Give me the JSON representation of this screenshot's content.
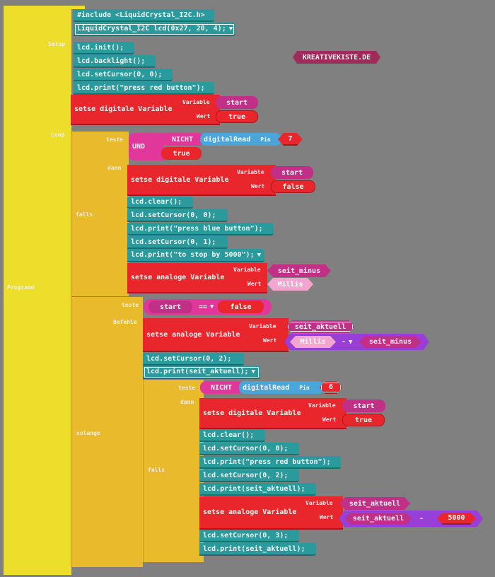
{
  "program": {
    "label": "Programm",
    "setup_label": "Setup",
    "loop_label": "Loop"
  },
  "badge": "KREATIVEKISTE.DE",
  "setup": {
    "include": "#include <LiquidCrystal_I2C.h>",
    "decl": "LiquidCrystal_I2C lcd(0x27, 20, 4);",
    "init": "lcd.init();",
    "backlight": "lcd.backlight();",
    "cursor": "lcd.setCursor(0, 0);",
    "print": "lcd.print(\"press red button\");",
    "set": {
      "label": "setse digitale Variable",
      "var_label": "Variable",
      "val_label": "Wert",
      "var": "start",
      "val": "true"
    }
  },
  "loop": {
    "if1": {
      "label": "falls",
      "test_label": "teste",
      "then_label": "dann",
      "and": "UND",
      "not": "NICHT",
      "dread": "digitalRead",
      "pin_label": "Pin",
      "pin": "7",
      "true": "true",
      "set": {
        "label": "setse digitale Variable",
        "var_label": "Variable",
        "val_label": "Wert",
        "var": "start",
        "val": "false"
      },
      "clear": "lcd.clear();",
      "c00": "lcd.setCursor(0, 0);",
      "p1": "lcd.print(\"press blue button\");",
      "c01": "lcd.setCursor(0, 1);",
      "p2": "lcd.print(\"to stop by 5000\");",
      "set2": {
        "label": "setse analoge Variable",
        "var_label": "Variable",
        "val_label": "Wert",
        "var": "seit_minus",
        "val": "Millis"
      }
    },
    "while": {
      "label": "solange",
      "test_label": "teste",
      "cmd_label": "Befehle",
      "lhs": "start",
      "op": "==",
      "rhs": "false",
      "set": {
        "label": "setse analoge Variable",
        "var_label": "Variable",
        "val_label": "Wert",
        "var": "seit_aktuell",
        "a": "Millis",
        "op": "-",
        "b": "seit_minus"
      },
      "c02": "lcd.setCursor(0, 2);",
      "p": "lcd.print(seit_aktuell);",
      "if2": {
        "label": "falls",
        "test_label": "teste",
        "then_label": "dann",
        "not": "NICHT",
        "dread": "digitalRead",
        "pin_label": "Pin",
        "pin": "6",
        "set": {
          "label": "setse digitale Variable",
          "var_label": "Variable",
          "val_label": "Wert",
          "var": "start",
          "val": "true"
        },
        "clear": "lcd.clear();",
        "c00": "lcd.setCursor(0, 0);",
        "p1": "lcd.print(\"press red button\");",
        "c02": "lcd.setCursor(0, 2);",
        "p2": "lcd.print(seit_aktuell);",
        "set2": {
          "label": "setse analoge Variable",
          "var_label": "Variable",
          "val_label": "Wert",
          "var": "seit_aktuell",
          "a": "seit_aktuell",
          "op": "-",
          "b": "5000"
        },
        "c03": "lcd.setCursor(0, 3);",
        "p3": "lcd.print(seit_aktuell);"
      }
    }
  }
}
